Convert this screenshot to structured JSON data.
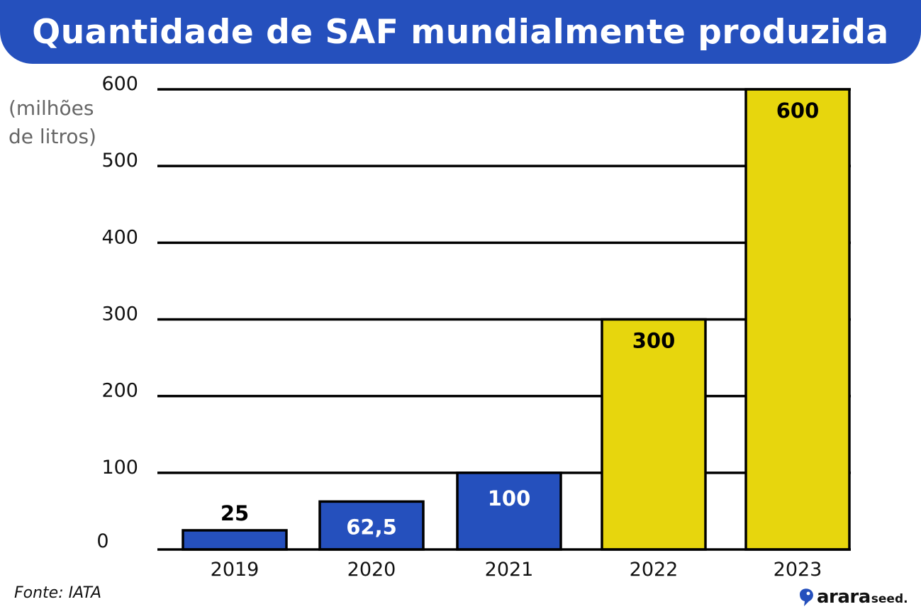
{
  "header": {
    "title": "Quantidade de SAF mundialmente produzida"
  },
  "unit_label": {
    "line1": "(milhões",
    "line2": "de litros)"
  },
  "footer": {
    "source": "Fonte: IATA"
  },
  "logo": {
    "main": "arara",
    "sub": "seed."
  },
  "colors": {
    "blue": "#2550bd",
    "yellow": "#e7d60d",
    "header": "#2550bd"
  },
  "chart_data": {
    "type": "bar",
    "title": "Quantidade de SAF mundialmente produzida",
    "ylabel": "(milhões de litros)",
    "xlabel": "",
    "ylim": [
      0,
      600
    ],
    "yticks": [
      "0",
      "100",
      "200",
      "300",
      "400",
      "500",
      "600"
    ],
    "grid": true,
    "categories": [
      "2019",
      "2020",
      "2021",
      "2022",
      "2023"
    ],
    "values": [
      25,
      62.5,
      100,
      300,
      600
    ],
    "value_labels": [
      "25",
      "62,5",
      "100",
      "300",
      "600"
    ],
    "bar_colors": [
      "#2550bd",
      "#2550bd",
      "#2550bd",
      "#e7d60d",
      "#e7d60d"
    ]
  }
}
